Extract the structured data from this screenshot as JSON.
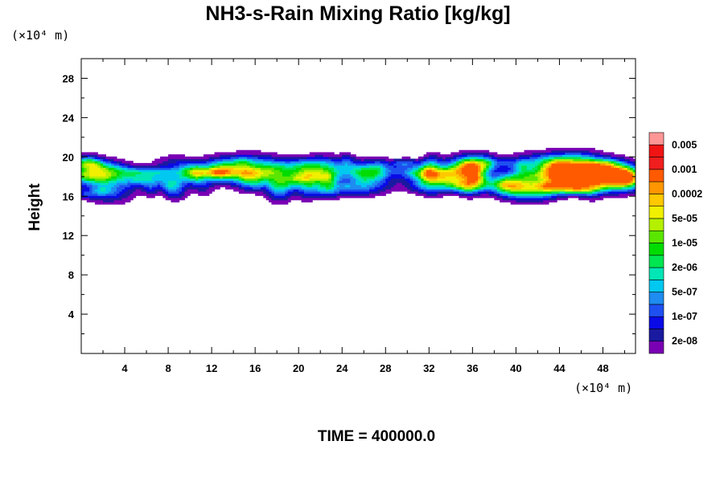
{
  "chart_data": {
    "type": "heatmap",
    "title": "NH3-s-Rain Mixing Ratio [kg/kg]",
    "ylabel": "Height",
    "xlabel": "",
    "x_unit_label": "(×10⁴ m)",
    "y_unit_label": "(×10⁴ m)",
    "xlim": [
      0,
      51
    ],
    "ylim": [
      0,
      30
    ],
    "x_ticks": [
      4,
      8,
      12,
      16,
      20,
      24,
      28,
      32,
      36,
      40,
      44,
      48
    ],
    "y_ticks": [
      4,
      8,
      12,
      16,
      20,
      24,
      28
    ],
    "footer": "TIME = 400000.0",
    "colorbar": {
      "colors": [
        "#7a00b4",
        "#1a1aa0",
        "#0a0ae6",
        "#1e50f0",
        "#1e8cf0",
        "#00c8f0",
        "#00e6b4",
        "#00e650",
        "#00dc00",
        "#5ae600",
        "#b4f000",
        "#f0f000",
        "#ffc800",
        "#ff9600",
        "#ff5a00",
        "#f01e1e",
        "#f01414",
        "#ff9696"
      ],
      "labels": [
        "2e-08",
        "1e-07",
        "5e-07",
        "2e-06",
        "1e-05",
        "5e-05",
        "0.0002",
        "0.001",
        "0.005"
      ]
    },
    "field_summary": {
      "band_bottom": 15.5,
      "band_top": 20.5,
      "max_region": {
        "x_center": 46.5,
        "y_center": 17.5,
        "level": "0.001"
      }
    }
  }
}
